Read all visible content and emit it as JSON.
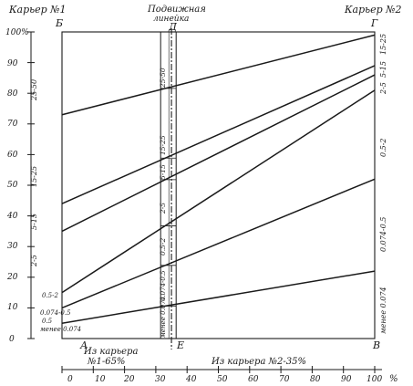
{
  "header": {
    "left_quarry": "Карьер №1",
    "right_quarry": "Карьер №2",
    "slider_title_line1": "Подвижная",
    "slider_title_line2": "линейка"
  },
  "corners": {
    "top_left": "Б",
    "top_mid": "Д",
    "top_right": "Г",
    "bottom_left": "А",
    "bottom_mid": "Е",
    "bottom_right": "В"
  },
  "left_axis": {
    "ticks": [
      "100%",
      "90",
      "80",
      "70",
      "60",
      "50",
      "40",
      "30",
      "20",
      "10",
      "0"
    ],
    "fraction_labels": [
      "25-50",
      "15-25",
      "5-15",
      "2-5",
      "0.5-2",
      "0.074-0.5",
      "0.5",
      "менее 0.074"
    ]
  },
  "right_axis": {
    "fraction_labels": [
      "15-25",
      "5-15",
      "2-5",
      "0.5-2",
      "0.074-0.5",
      "менее 0.074"
    ]
  },
  "slider_labels": [
    "25-50",
    "15-25",
    "5-15",
    "2-5",
    "0.5-2",
    "0.074-0.5",
    "менее 0.074"
  ],
  "bottom": {
    "left_caption_line1": "Из карьера",
    "left_caption_line2": "№1-65%",
    "right_caption": "Из карьера №2-35%",
    "scale_ticks": [
      "0",
      "10",
      "20",
      "30",
      "40",
      "50",
      "60",
      "70",
      "80",
      "90",
      "100"
    ],
    "scale_unit": "%"
  },
  "chart_data": {
    "type": "line",
    "xlabel": "",
    "ylabel": "",
    "x": [
      0,
      100
    ],
    "ylim": [
      0,
      100
    ],
    "xlim": [
      0,
      100
    ],
    "series": [
      {
        "values": [
          73,
          99
        ]
      },
      {
        "values": [
          44,
          89
        ]
      },
      {
        "values": [
          35,
          86
        ]
      },
      {
        "values": [
          15,
          81
        ]
      },
      {
        "values": [
          10,
          52
        ]
      },
      {
        "values": [
          5,
          22
        ]
      }
    ],
    "slider_x": 33,
    "mix_line_x": 35
  }
}
